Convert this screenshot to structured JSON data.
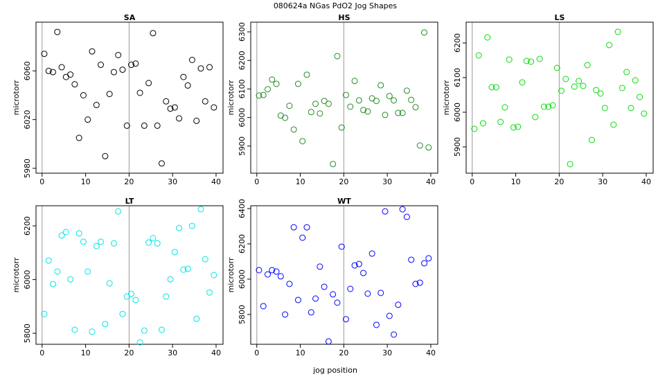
{
  "title": "080624a   NGas PdO2 Jog Shapes",
  "xlabel": "jog position",
  "chart_data": [
    {
      "type": "scatter",
      "title": "SA",
      "ylabel": "microtorr",
      "color": "#000000",
      "x": [
        0.5,
        1.5,
        2.5,
        3.5,
        4.5,
        5.5,
        6.5,
        7.5,
        8.5,
        9.5,
        10.5,
        11.5,
        12.5,
        13.5,
        14.5,
        15.5,
        16.5,
        17.5,
        18.5,
        19.5,
        20.5,
        21.5,
        22.5,
        23.5,
        24.5,
        25.5,
        26.5,
        27.5,
        28.5,
        29.5,
        30.5,
        31.5,
        32.5,
        33.5,
        34.5,
        35.5,
        36.5,
        37.5,
        38.5,
        39.5
      ],
      "values": [
        6074,
        6060,
        6059,
        6092,
        6063,
        6055,
        6057,
        6049,
        6005,
        6040,
        6020,
        6076,
        6032,
        6065,
        5990,
        6041,
        6059,
        6073,
        6061,
        6015,
        6065,
        6066,
        6042,
        6015,
        6050,
        6091,
        6015,
        5984,
        6035,
        6029,
        6030,
        6021,
        6055,
        6048,
        6069,
        6019,
        6062,
        6035,
        6063,
        6030
      ],
      "xlim": [
        -1.4,
        41.6
      ],
      "xticks": [
        0,
        10,
        20,
        30,
        40
      ],
      "ylim": [
        5976,
        6100
      ],
      "yticks": [
        5980,
        6020,
        6060
      ],
      "vlines": [
        0,
        20
      ]
    },
    {
      "type": "scatter",
      "title": "HS",
      "ylabel": "microtorr",
      "color": "#228b22",
      "x": [
        0.5,
        1.5,
        2.5,
        3.5,
        4.5,
        5.5,
        6.5,
        7.5,
        8.5,
        9.5,
        10.5,
        11.5,
        12.5,
        13.5,
        14.5,
        15.5,
        16.5,
        17.5,
        18.5,
        19.5,
        20.5,
        21.5,
        22.5,
        23.5,
        24.5,
        25.5,
        26.5,
        27.5,
        28.5,
        29.5,
        30.5,
        31.5,
        32.5,
        33.5,
        34.5,
        35.5,
        36.5,
        37.5,
        38.5,
        39.5
      ],
      "values": [
        6077,
        6079,
        6099,
        6133,
        6118,
        6007,
        5999,
        6041,
        5958,
        6118,
        5917,
        6150,
        6019,
        6048,
        6014,
        6058,
        6048,
        5837,
        6215,
        5965,
        6079,
        6038,
        6128,
        6060,
        6026,
        6021,
        6067,
        6058,
        6113,
        6009,
        6075,
        6060,
        6016,
        6016,
        6094,
        6062,
        6036,
        5902,
        6298,
        5895
      ],
      "xlim": [
        -1.4,
        41.6
      ],
      "xticks": [
        0,
        10,
        20,
        30,
        40
      ],
      "ylim": [
        5805,
        6334
      ],
      "yticks": [
        5900,
        6000,
        6100,
        6200,
        6300
      ],
      "vlines": [
        0,
        20
      ]
    },
    {
      "type": "scatter",
      "title": "LS",
      "ylabel": "microtorr",
      "color": "#00dd00",
      "x": [
        0.5,
        1.5,
        2.5,
        3.5,
        4.5,
        5.5,
        6.5,
        7.5,
        8.5,
        9.5,
        10.5,
        11.5,
        12.5,
        13.5,
        14.5,
        15.5,
        16.5,
        17.5,
        18.5,
        19.5,
        20.5,
        21.5,
        22.5,
        23.5,
        24.5,
        25.5,
        26.5,
        27.5,
        28.5,
        29.5,
        30.5,
        31.5,
        32.5,
        33.5,
        34.5,
        35.5,
        36.5,
        37.5,
        38.5,
        39.5
      ],
      "values": [
        5952,
        6164,
        5968,
        6216,
        6072,
        6072,
        5972,
        6014,
        6152,
        5956,
        5958,
        6086,
        6148,
        6146,
        5986,
        6154,
        6016,
        6016,
        6020,
        6128,
        6062,
        6096,
        5850,
        6074,
        6090,
        6076,
        6136,
        5920,
        6064,
        6054,
        6012,
        6194,
        5964,
        6232,
        6070,
        6116,
        6012,
        6092,
        6044,
        5996
      ],
      "xlim": [
        -1.4,
        41.6
      ],
      "xticks": [
        0,
        10,
        20,
        30,
        40
      ],
      "ylim": [
        5824,
        6260
      ],
      "yticks": [
        5900,
        6000,
        6100,
        6200
      ],
      "vlines": [
        0,
        20
      ]
    },
    {
      "type": "scatter",
      "title": "LT",
      "ylabel": "microtorr",
      "color": "#00e5e5",
      "x": [
        0.5,
        1.5,
        2.5,
        3.5,
        4.5,
        5.5,
        6.5,
        7.5,
        8.5,
        9.5,
        10.5,
        11.5,
        12.5,
        13.5,
        14.5,
        15.5,
        16.5,
        17.5,
        18.5,
        19.5,
        20.5,
        21.5,
        22.5,
        23.5,
        24.5,
        25.5,
        26.5,
        27.5,
        28.5,
        29.5,
        30.5,
        31.5,
        32.5,
        33.5,
        34.5,
        35.5,
        36.5,
        37.5,
        38.5,
        39.5
      ],
      "values": [
        5872,
        6071,
        5983,
        6030,
        6164,
        6177,
        6001,
        5813,
        6172,
        6141,
        6030,
        5806,
        6125,
        6141,
        5834,
        5986,
        6135,
        6254,
        5872,
        5937,
        5947,
        5924,
        5766,
        5810,
        6138,
        6154,
        6135,
        5813,
        5937,
        6001,
        6102,
        6192,
        6037,
        6040,
        6200,
        5854,
        6262,
        6076,
        5952,
        6017
      ],
      "xlim": [
        -1.4,
        41.6
      ],
      "xticks": [
        0,
        10,
        20,
        30,
        40
      ],
      "ylim": [
        5759,
        6275
      ],
      "yticks": [
        5800,
        6000,
        6200
      ],
      "vlines": [
        0,
        20
      ]
    },
    {
      "type": "scatter",
      "title": "WT",
      "ylabel": "microtorr",
      "color": "#0000ff",
      "x": [
        0.5,
        1.5,
        2.5,
        3.5,
        4.5,
        5.5,
        6.5,
        7.5,
        8.5,
        9.5,
        10.5,
        11.5,
        12.5,
        13.5,
        14.5,
        15.5,
        16.5,
        17.5,
        18.5,
        19.5,
        20.5,
        21.5,
        22.5,
        23.5,
        24.5,
        25.5,
        26.5,
        27.5,
        28.5,
        29.5,
        30.5,
        31.5,
        32.5,
        33.5,
        34.5,
        35.5,
        36.5,
        37.5,
        38.5,
        39.5
      ],
      "values": [
        6051,
        5847,
        6027,
        6051,
        6043,
        6016,
        5800,
        5973,
        6294,
        5882,
        6235,
        6294,
        5812,
        5890,
        6071,
        5957,
        5647,
        5914,
        5867,
        6184,
        5773,
        5945,
        6078,
        6086,
        6035,
        5918,
        6145,
        5741,
        5922,
        6384,
        5792,
        5686,
        5855,
        6396,
        6353,
        6110,
        5973,
        5980,
        6090,
        6118
      ],
      "xlim": [
        -1.4,
        41.6
      ],
      "xticks": [
        0,
        10,
        20,
        30,
        40
      ],
      "ylim": [
        5631,
        6416
      ],
      "yticks": [
        5800,
        6000,
        6200,
        6400
      ],
      "vlines": [
        0,
        20
      ]
    }
  ]
}
